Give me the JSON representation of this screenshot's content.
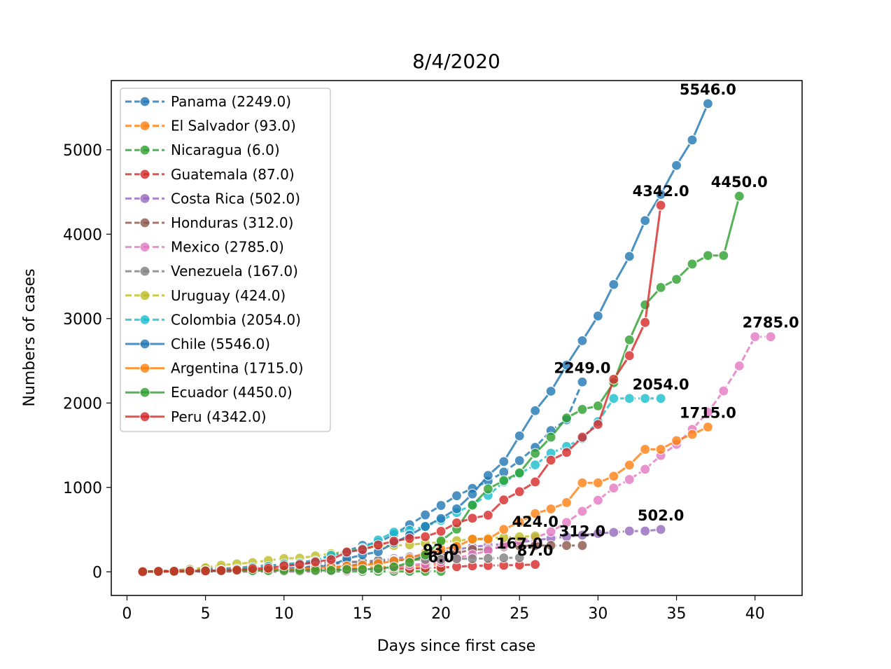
{
  "chart_data": {
    "type": "line",
    "title": "8/4/2020",
    "xlabel": "Days since first case",
    "ylabel": "Numbers of cases",
    "xlim": [
      -1,
      43
    ],
    "ylim": [
      -280,
      5820
    ],
    "xticks": [
      0,
      5,
      10,
      15,
      20,
      25,
      30,
      35,
      40
    ],
    "yticks": [
      0,
      1000,
      2000,
      3000,
      4000,
      5000
    ],
    "grid": false,
    "legend_position": "upper-left",
    "series": [
      {
        "name": "Panama (2249.0)",
        "end_label": "2249.0",
        "color": "#1f77b4",
        "x": [
          1,
          2,
          3,
          4,
          5,
          6,
          7,
          8,
          9,
          10,
          11,
          12,
          13,
          14,
          15,
          16,
          17,
          18,
          19,
          20,
          21,
          22,
          23,
          24,
          25,
          26,
          27,
          28,
          29
        ],
        "y": [
          1,
          5,
          8,
          11,
          27,
          36,
          43,
          55,
          69,
          86,
          109,
          137,
          200,
          245,
          313,
          345,
          443,
          558,
          674,
          786,
          901,
          989,
          1075,
          1181,
          1317,
          1475,
          1673,
          1801,
          2249
        ]
      },
      {
        "name": "El Salvador (93.0)",
        "end_label": "93.0",
        "color": "#ff7f0e",
        "x": [
          1,
          2,
          3,
          4,
          5,
          6,
          7,
          8,
          9,
          10,
          11,
          12,
          13,
          14,
          15,
          16,
          17,
          18,
          19,
          20
        ],
        "y": [
          1,
          1,
          3,
          3,
          5,
          5,
          9,
          13,
          13,
          19,
          24,
          30,
          32,
          41,
          46,
          56,
          62,
          69,
          78,
          93
        ]
      },
      {
        "name": "Nicaragua (6.0)",
        "end_label": "6.0",
        "color": "#2ca02c",
        "x": [
          1,
          2,
          3,
          4,
          5,
          6,
          7,
          8,
          9,
          10,
          11,
          12,
          13,
          14,
          15,
          16,
          17,
          18,
          19,
          20
        ],
        "y": [
          1,
          1,
          1,
          1,
          2,
          2,
          2,
          2,
          2,
          2,
          3,
          4,
          4,
          4,
          4,
          5,
          5,
          5,
          6,
          6
        ]
      },
      {
        "name": "Guatemala (87.0)",
        "end_label": "87.0",
        "color": "#d62728",
        "x": [
          1,
          2,
          3,
          4,
          5,
          6,
          7,
          8,
          9,
          10,
          11,
          12,
          13,
          14,
          15,
          16,
          17,
          18,
          19,
          20,
          21,
          22,
          23,
          24,
          25,
          26
        ],
        "y": [
          1,
          1,
          2,
          6,
          6,
          9,
          12,
          17,
          19,
          20,
          21,
          24,
          25,
          28,
          32,
          34,
          36,
          38,
          46,
          50,
          61,
          70,
          74,
          77,
          80,
          87
        ]
      },
      {
        "name": "Costa Rica (502.0)",
        "end_label": "502.0",
        "color": "#9467bd",
        "x": [
          1,
          2,
          3,
          4,
          5,
          6,
          7,
          8,
          9,
          10,
          11,
          12,
          13,
          14,
          15,
          16,
          17,
          18,
          19,
          20,
          21,
          22,
          23,
          24,
          25,
          26,
          27,
          28,
          29,
          30,
          31,
          32,
          33,
          34
        ],
        "y": [
          1,
          5,
          9,
          13,
          22,
          23,
          26,
          27,
          35,
          41,
          50,
          69,
          87,
          113,
          117,
          134,
          158,
          177,
          201,
          231,
          263,
          295,
          314,
          330,
          347,
          375,
          396,
          416,
          435,
          454,
          467,
          483,
          483,
          502
        ]
      },
      {
        "name": "Honduras (312.0)",
        "end_label": "312.0",
        "color": "#8c564b",
        "x": [
          1,
          2,
          3,
          4,
          5,
          6,
          7,
          8,
          9,
          10,
          11,
          12,
          13,
          14,
          15,
          16,
          17,
          18,
          19,
          20,
          21,
          22,
          23,
          24,
          25,
          26,
          27,
          28,
          29
        ],
        "y": [
          2,
          2,
          3,
          6,
          8,
          9,
          12,
          24,
          26,
          26,
          30,
          36,
          52,
          68,
          95,
          110,
          139,
          141,
          172,
          219,
          222,
          264,
          268,
          298,
          305,
          312,
          312,
          312,
          312
        ]
      },
      {
        "name": "Mexico (2785.0)",
        "end_label": "2785.0",
        "color": "#e377c2",
        "x": [
          1,
          2,
          3,
          4,
          5,
          6,
          7,
          8,
          9,
          10,
          11,
          12,
          13,
          14,
          15,
          16,
          17,
          18,
          19,
          20,
          21,
          22,
          23,
          24,
          25,
          26,
          27,
          28,
          29,
          30,
          31,
          32,
          33,
          34,
          35,
          36,
          37,
          38,
          39,
          40,
          41
        ],
        "y": [
          2,
          4,
          5,
          5,
          5,
          5,
          6,
          7,
          7,
          7,
          7,
          8,
          12,
          12,
          26,
          41,
          53,
          82,
          93,
          118,
          164,
          203,
          251,
          316,
          367,
          405,
          475,
          585,
          717,
          848,
          993,
          1094,
          1215,
          1378,
          1510,
          1688,
          1890,
          2143,
          2439,
          2785,
          2785
        ]
      },
      {
        "name": "Venezuela (167.0)",
        "end_label": "167.0",
        "color": "#7f7f7f",
        "x": [
          1,
          2,
          3,
          4,
          5,
          6,
          7,
          8,
          9,
          10,
          11,
          12,
          13,
          14,
          15,
          16,
          17,
          18,
          19,
          20,
          21,
          22,
          23,
          24,
          25
        ],
        "y": [
          2,
          10,
          17,
          33,
          36,
          42,
          42,
          70,
          77,
          84,
          91,
          107,
          107,
          119,
          119,
          135,
          135,
          143,
          144,
          146,
          153,
          155,
          159,
          165,
          167
        ]
      },
      {
        "name": "Uruguay (424.0)",
        "end_label": "424.0",
        "color": "#bcbd22",
        "x": [
          1,
          2,
          3,
          4,
          5,
          6,
          7,
          8,
          9,
          10,
          11,
          12,
          13,
          14,
          15,
          16,
          17,
          18,
          19,
          20,
          21,
          22,
          23,
          24,
          25,
          26
        ],
        "y": [
          4,
          6,
          8,
          29,
          50,
          79,
          94,
          110,
          135,
          158,
          162,
          189,
          217,
          238,
          274,
          304,
          310,
          320,
          338,
          350,
          369,
          386,
          400,
          406,
          415,
          424
        ]
      },
      {
        "name": "Colombia (2054.0)",
        "end_label": "2054.0",
        "color": "#17becf",
        "x": [
          1,
          2,
          3,
          4,
          5,
          6,
          7,
          8,
          9,
          10,
          11,
          12,
          13,
          14,
          15,
          16,
          17,
          18,
          19,
          20,
          21,
          22,
          23,
          24,
          25,
          26,
          27,
          28,
          29,
          30,
          31,
          32,
          33,
          34
        ],
        "y": [
          1,
          3,
          9,
          9,
          13,
          22,
          34,
          54,
          65,
          93,
          102,
          128,
          196,
          231,
          277,
          378,
          470,
          491,
          539,
          608,
          702,
          798,
          906,
          1065,
          1161,
          1267,
          1406,
          1485,
          1579,
          1780,
          2054,
          2054,
          2054,
          2054
        ]
      },
      {
        "name": "Chile (5546.0)",
        "end_label": "5546.0",
        "color": "#1f77b4",
        "x": [
          1,
          2,
          3,
          4,
          5,
          6,
          7,
          8,
          9,
          10,
          11,
          12,
          13,
          14,
          15,
          16,
          17,
          18,
          19,
          20,
          21,
          22,
          23,
          24,
          25,
          26,
          27,
          28,
          29,
          30,
          31,
          32,
          33,
          34,
          35,
          36,
          37
        ],
        "y": [
          1,
          1,
          4,
          4,
          7,
          10,
          13,
          17,
          23,
          33,
          43,
          61,
          75,
          156,
          201,
          238,
          342,
          434,
          537,
          632,
          746,
          922,
          1142,
          1306,
          1610,
          1909,
          2139,
          2449,
          2738,
          3031,
          3404,
          3737,
          4161,
          4471,
          4815,
          5116,
          5546
        ]
      },
      {
        "name": "Argentina (1715.0)",
        "end_label": "1715.0",
        "color": "#ff7f0e",
        "x": [
          1,
          2,
          3,
          4,
          5,
          6,
          7,
          8,
          9,
          10,
          11,
          12,
          13,
          14,
          15,
          16,
          17,
          18,
          19,
          20,
          21,
          22,
          23,
          24,
          25,
          26,
          27,
          28,
          29,
          30,
          31,
          32,
          33,
          34,
          35,
          36,
          37
        ],
        "y": [
          1,
          1,
          2,
          8,
          12,
          12,
          17,
          19,
          19,
          31,
          34,
          45,
          56,
          68,
          79,
          97,
          128,
          158,
          225,
          266,
          301,
          387,
          387,
          502,
          589,
          690,
          745,
          820,
          1054,
          1054,
          1133,
          1265,
          1451,
          1451,
          1554,
          1628,
          1715
        ]
      },
      {
        "name": "Ecuador (4450.0)",
        "end_label": "4450.0",
        "color": "#2ca02c",
        "x": [
          1,
          2,
          3,
          4,
          5,
          6,
          7,
          8,
          9,
          10,
          11,
          12,
          13,
          14,
          15,
          16,
          17,
          18,
          19,
          20,
          21,
          22,
          23,
          24,
          25,
          26,
          27,
          28,
          29,
          30,
          31,
          32,
          33,
          34,
          35,
          36,
          37,
          38,
          39
        ],
        "y": [
          6,
          6,
          7,
          10,
          13,
          13,
          13,
          14,
          15,
          15,
          17,
          17,
          17,
          28,
          28,
          37,
          58,
          111,
          199,
          367,
          506,
          789,
          981,
          1082,
          1173,
          1403,
          1595,
          1823,
          1924,
          1966,
          2240,
          2748,
          3163,
          3368,
          3465,
          3646,
          3747,
          3747,
          4450
        ]
      },
      {
        "name": "Peru (4342.0)",
        "end_label": "4342.0",
        "color": "#d62728",
        "x": [
          1,
          2,
          3,
          4,
          5,
          6,
          7,
          8,
          9,
          10,
          11,
          12,
          13,
          14,
          15,
          16,
          17,
          18,
          19,
          20,
          21,
          22,
          23,
          24,
          25,
          26,
          27,
          28,
          29,
          30,
          31,
          32,
          33,
          34
        ],
        "y": [
          1,
          6,
          7,
          11,
          11,
          15,
          22,
          38,
          43,
          71,
          86,
          117,
          145,
          234,
          263,
          318,
          363,
          395,
          416,
          480,
          580,
          635,
          671,
          852,
          950,
          1065,
          1323,
          1414,
          1595,
          1746,
          2281,
          2561,
          2954,
          4342
        ]
      }
    ]
  }
}
